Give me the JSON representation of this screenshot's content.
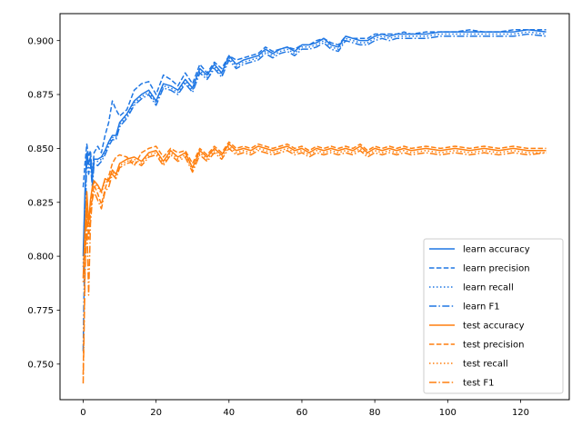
{
  "chart_data": {
    "type": "line",
    "title": "",
    "xlabel": "",
    "ylabel": "",
    "xlim": [
      -6.35,
      133.35
    ],
    "ylim": [
      0.7335,
      0.9125
    ],
    "xticks": [
      0,
      20,
      40,
      60,
      80,
      100,
      120
    ],
    "xtick_labels": [
      "0",
      "20",
      "40",
      "60",
      "80",
      "100",
      "120"
    ],
    "yticks": [
      0.75,
      0.775,
      0.8,
      0.825,
      0.85,
      0.875,
      0.9
    ],
    "ytick_labels": [
      "0.750",
      "0.775",
      "0.800",
      "0.825",
      "0.850",
      "0.875",
      "0.900"
    ],
    "grid": false,
    "legend_position": "lower-right",
    "colors": {
      "learn": "#1f77e4",
      "test": "#ff7f0e"
    },
    "series": [
      {
        "name": "learn accuracy",
        "group": "learn",
        "style": "solid",
        "x": [
          0,
          0.5,
          1,
          1.5,
          2,
          2.5,
          3,
          4,
          5,
          6,
          7,
          8,
          9,
          10,
          12,
          14,
          16,
          18,
          20,
          22,
          24,
          26,
          28,
          30,
          32,
          34,
          36,
          38,
          40,
          42,
          44,
          46,
          48,
          50,
          52,
          54,
          56,
          58,
          60,
          62,
          64,
          66,
          68,
          70,
          72,
          74,
          76,
          78,
          80,
          82,
          84,
          86,
          88,
          90,
          94,
          98,
          102,
          106,
          110,
          114,
          118,
          122,
          127
        ],
        "y": [
          0.8,
          0.83,
          0.848,
          0.843,
          0.846,
          0.836,
          0.845,
          0.845,
          0.846,
          0.849,
          0.853,
          0.856,
          0.856,
          0.862,
          0.866,
          0.872,
          0.875,
          0.877,
          0.872,
          0.88,
          0.879,
          0.877,
          0.882,
          0.878,
          0.887,
          0.884,
          0.889,
          0.885,
          0.893,
          0.889,
          0.891,
          0.892,
          0.893,
          0.896,
          0.894,
          0.896,
          0.897,
          0.895,
          0.898,
          0.898,
          0.899,
          0.901,
          0.898,
          0.897,
          0.902,
          0.901,
          0.9,
          0.9,
          0.902,
          0.903,
          0.902,
          0.903,
          0.903,
          0.903,
          0.903,
          0.904,
          0.904,
          0.904,
          0.904,
          0.904,
          0.904,
          0.905,
          0.904
        ]
      },
      {
        "name": "learn precision",
        "group": "learn",
        "style": "dashed",
        "x": [
          0,
          0.5,
          1,
          1.5,
          2,
          2.5,
          3,
          4,
          5,
          6,
          7,
          8,
          9,
          10,
          12,
          14,
          16,
          18,
          20,
          22,
          24,
          26,
          28,
          30,
          32,
          34,
          36,
          38,
          40,
          42,
          44,
          46,
          48,
          50,
          52,
          54,
          56,
          58,
          60,
          62,
          64,
          66,
          68,
          70,
          72,
          74,
          76,
          78,
          80,
          82,
          84,
          86,
          88,
          90,
          94,
          98,
          102,
          106,
          110,
          114,
          118,
          122,
          127
        ],
        "y": [
          0.832,
          0.843,
          0.852,
          0.846,
          0.849,
          0.838,
          0.848,
          0.851,
          0.848,
          0.856,
          0.862,
          0.872,
          0.868,
          0.865,
          0.868,
          0.877,
          0.88,
          0.881,
          0.875,
          0.884,
          0.882,
          0.879,
          0.885,
          0.88,
          0.889,
          0.885,
          0.89,
          0.887,
          0.893,
          0.891,
          0.892,
          0.893,
          0.894,
          0.897,
          0.895,
          0.896,
          0.897,
          0.896,
          0.898,
          0.898,
          0.9,
          0.901,
          0.899,
          0.898,
          0.902,
          0.901,
          0.901,
          0.901,
          0.903,
          0.903,
          0.903,
          0.903,
          0.904,
          0.903,
          0.904,
          0.904,
          0.904,
          0.905,
          0.904,
          0.904,
          0.905,
          0.905,
          0.905
        ]
      },
      {
        "name": "learn recall",
        "group": "learn",
        "style": "dotted",
        "x": [
          0,
          0.5,
          1,
          1.5,
          2,
          2.5,
          3,
          4,
          5,
          6,
          7,
          8,
          9,
          10,
          12,
          14,
          16,
          18,
          20,
          22,
          24,
          26,
          28,
          30,
          32,
          34,
          36,
          38,
          40,
          42,
          44,
          46,
          48,
          50,
          52,
          54,
          56,
          58,
          60,
          62,
          64,
          66,
          68,
          70,
          72,
          74,
          76,
          78,
          80,
          82,
          84,
          86,
          88,
          90,
          94,
          98,
          102,
          106,
          110,
          114,
          118,
          122,
          127
        ],
        "y": [
          0.795,
          0.828,
          0.846,
          0.841,
          0.845,
          0.834,
          0.844,
          0.844,
          0.845,
          0.848,
          0.852,
          0.855,
          0.855,
          0.861,
          0.865,
          0.871,
          0.874,
          0.876,
          0.871,
          0.879,
          0.878,
          0.876,
          0.881,
          0.877,
          0.886,
          0.883,
          0.888,
          0.884,
          0.892,
          0.888,
          0.89,
          0.891,
          0.892,
          0.895,
          0.893,
          0.895,
          0.896,
          0.894,
          0.897,
          0.897,
          0.898,
          0.9,
          0.897,
          0.896,
          0.901,
          0.9,
          0.899,
          0.899,
          0.901,
          0.902,
          0.901,
          0.902,
          0.902,
          0.902,
          0.902,
          0.903,
          0.903,
          0.903,
          0.903,
          0.903,
          0.903,
          0.904,
          0.903
        ]
      },
      {
        "name": "learn F1",
        "group": "learn",
        "style": "dashdot",
        "x": [
          0,
          0.5,
          1,
          1.5,
          2,
          2.5,
          3,
          4,
          5,
          6,
          7,
          8,
          9,
          10,
          12,
          14,
          16,
          18,
          20,
          22,
          24,
          26,
          28,
          30,
          32,
          34,
          36,
          38,
          40,
          42,
          44,
          46,
          48,
          50,
          52,
          54,
          56,
          58,
          60,
          62,
          64,
          66,
          68,
          70,
          72,
          74,
          76,
          78,
          80,
          82,
          84,
          86,
          88,
          90,
          94,
          98,
          102,
          106,
          110,
          114,
          118,
          122,
          127
        ],
        "y": [
          0.756,
          0.812,
          0.846,
          0.838,
          0.843,
          0.832,
          0.843,
          0.842,
          0.844,
          0.847,
          0.851,
          0.854,
          0.854,
          0.86,
          0.864,
          0.87,
          0.873,
          0.875,
          0.87,
          0.878,
          0.877,
          0.875,
          0.88,
          0.876,
          0.885,
          0.882,
          0.887,
          0.883,
          0.891,
          0.887,
          0.889,
          0.89,
          0.891,
          0.894,
          0.892,
          0.894,
          0.895,
          0.893,
          0.896,
          0.896,
          0.897,
          0.899,
          0.896,
          0.895,
          0.9,
          0.899,
          0.898,
          0.898,
          0.9,
          0.901,
          0.9,
          0.901,
          0.901,
          0.901,
          0.901,
          0.902,
          0.902,
          0.902,
          0.902,
          0.902,
          0.902,
          0.903,
          0.902
        ]
      },
      {
        "name": "test accuracy",
        "group": "test",
        "style": "solid",
        "x": [
          0,
          0.5,
          1,
          1.5,
          2,
          2.5,
          3,
          4,
          5,
          6,
          7,
          8,
          9,
          10,
          12,
          14,
          16,
          18,
          20,
          22,
          24,
          26,
          28,
          30,
          32,
          34,
          36,
          38,
          40,
          42,
          44,
          46,
          48,
          50,
          52,
          54,
          56,
          58,
          60,
          62,
          64,
          66,
          68,
          70,
          72,
          74,
          76,
          78,
          80,
          82,
          84,
          86,
          88,
          90,
          94,
          98,
          102,
          106,
          110,
          114,
          118,
          122,
          127
        ],
        "y": [
          0.79,
          0.812,
          0.83,
          0.815,
          0.826,
          0.832,
          0.835,
          0.833,
          0.83,
          0.836,
          0.835,
          0.84,
          0.838,
          0.843,
          0.845,
          0.846,
          0.844,
          0.848,
          0.849,
          0.844,
          0.849,
          0.846,
          0.848,
          0.841,
          0.849,
          0.846,
          0.85,
          0.847,
          0.852,
          0.849,
          0.85,
          0.849,
          0.851,
          0.85,
          0.849,
          0.85,
          0.851,
          0.849,
          0.85,
          0.848,
          0.85,
          0.849,
          0.85,
          0.849,
          0.85,
          0.849,
          0.851,
          0.848,
          0.85,
          0.849,
          0.85,
          0.849,
          0.85,
          0.849,
          0.85,
          0.849,
          0.85,
          0.849,
          0.85,
          0.849,
          0.85,
          0.849,
          0.849
        ]
      },
      {
        "name": "test precision",
        "group": "test",
        "style": "dashed",
        "x": [
          0,
          0.5,
          1,
          1.5,
          2,
          2.5,
          3,
          4,
          5,
          6,
          7,
          8,
          9,
          10,
          12,
          14,
          16,
          18,
          20,
          22,
          24,
          26,
          28,
          30,
          32,
          34,
          36,
          38,
          40,
          42,
          44,
          46,
          48,
          50,
          52,
          54,
          56,
          58,
          60,
          62,
          64,
          66,
          68,
          70,
          72,
          74,
          76,
          78,
          80,
          82,
          84,
          86,
          88,
          90,
          94,
          98,
          102,
          106,
          110,
          114,
          118,
          122,
          127
        ],
        "y": [
          0.745,
          0.795,
          0.822,
          0.808,
          0.82,
          0.828,
          0.833,
          0.829,
          0.824,
          0.831,
          0.837,
          0.843,
          0.846,
          0.847,
          0.846,
          0.842,
          0.848,
          0.85,
          0.851,
          0.846,
          0.85,
          0.848,
          0.849,
          0.843,
          0.85,
          0.847,
          0.851,
          0.848,
          0.853,
          0.85,
          0.851,
          0.85,
          0.852,
          0.851,
          0.85,
          0.851,
          0.852,
          0.85,
          0.851,
          0.849,
          0.851,
          0.85,
          0.851,
          0.85,
          0.851,
          0.85,
          0.852,
          0.849,
          0.851,
          0.85,
          0.851,
          0.85,
          0.851,
          0.85,
          0.851,
          0.85,
          0.851,
          0.85,
          0.851,
          0.85,
          0.851,
          0.85,
          0.85
        ]
      },
      {
        "name": "test recall",
        "group": "test",
        "style": "dotted",
        "x": [
          0,
          0.5,
          1,
          1.5,
          2,
          2.5,
          3,
          4,
          5,
          6,
          7,
          8,
          9,
          10,
          12,
          14,
          16,
          18,
          20,
          22,
          24,
          26,
          28,
          30,
          32,
          34,
          36,
          38,
          40,
          42,
          44,
          46,
          48,
          50,
          52,
          54,
          56,
          58,
          60,
          62,
          64,
          66,
          68,
          70,
          72,
          74,
          76,
          78,
          80,
          82,
          84,
          86,
          88,
          90,
          94,
          98,
          102,
          106,
          110,
          114,
          118,
          122,
          127
        ],
        "y": [
          0.788,
          0.81,
          0.829,
          0.814,
          0.825,
          0.831,
          0.834,
          0.832,
          0.829,
          0.835,
          0.834,
          0.839,
          0.837,
          0.842,
          0.844,
          0.845,
          0.843,
          0.847,
          0.848,
          0.843,
          0.848,
          0.845,
          0.847,
          0.84,
          0.848,
          0.845,
          0.849,
          0.846,
          0.851,
          0.848,
          0.849,
          0.848,
          0.85,
          0.849,
          0.848,
          0.849,
          0.85,
          0.848,
          0.849,
          0.847,
          0.849,
          0.848,
          0.849,
          0.848,
          0.849,
          0.848,
          0.85,
          0.847,
          0.849,
          0.848,
          0.849,
          0.848,
          0.849,
          0.848,
          0.849,
          0.848,
          0.849,
          0.848,
          0.849,
          0.848,
          0.849,
          0.848,
          0.848
        ]
      },
      {
        "name": "test F1",
        "group": "test",
        "style": "dashdot",
        "x": [
          0,
          0.5,
          1,
          1.5,
          2,
          2.5,
          3,
          4,
          5,
          6,
          7,
          8,
          9,
          10,
          12,
          14,
          16,
          18,
          20,
          22,
          24,
          26,
          28,
          30,
          32,
          34,
          36,
          38,
          40,
          42,
          44,
          46,
          48,
          50,
          52,
          54,
          56,
          58,
          60,
          62,
          64,
          66,
          68,
          70,
          72,
          74,
          76,
          78,
          80,
          82,
          84,
          86,
          88,
          90,
          94,
          98,
          102,
          106,
          110,
          114,
          118,
          122,
          127
        ],
        "y": [
          0.741,
          0.79,
          0.818,
          0.782,
          0.815,
          0.826,
          0.83,
          0.826,
          0.822,
          0.83,
          0.832,
          0.838,
          0.836,
          0.841,
          0.843,
          0.844,
          0.842,
          0.846,
          0.847,
          0.842,
          0.847,
          0.844,
          0.846,
          0.839,
          0.847,
          0.844,
          0.848,
          0.845,
          0.85,
          0.847,
          0.848,
          0.847,
          0.849,
          0.848,
          0.847,
          0.848,
          0.849,
          0.847,
          0.848,
          0.846,
          0.848,
          0.847,
          0.848,
          0.847,
          0.848,
          0.847,
          0.849,
          0.846,
          0.848,
          0.847,
          0.848,
          0.847,
          0.848,
          0.847,
          0.848,
          0.847,
          0.848,
          0.847,
          0.848,
          0.847,
          0.848,
          0.847,
          0.848
        ]
      }
    ]
  }
}
